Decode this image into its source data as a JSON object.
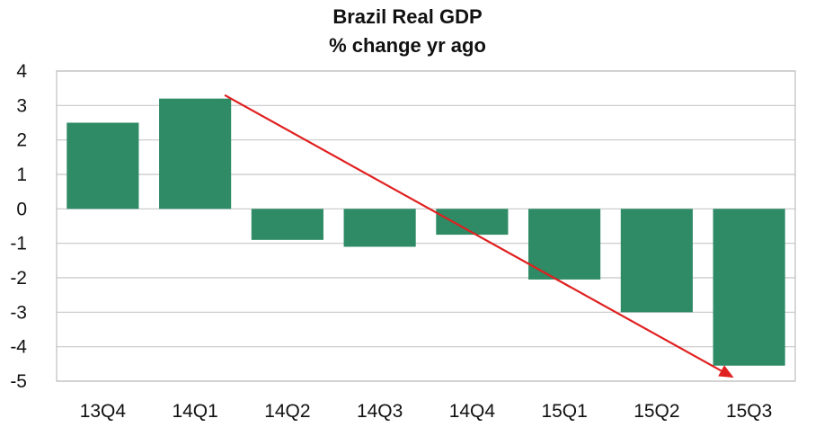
{
  "chart_data": {
    "type": "bar",
    "title": "Brazil Real GDP",
    "subtitle": "% change yr ago",
    "categories": [
      "13Q4",
      "14Q1",
      "14Q2",
      "14Q3",
      "14Q4",
      "15Q1",
      "15Q2",
      "15Q3"
    ],
    "values": [
      2.5,
      3.2,
      -0.9,
      -1.1,
      -0.75,
      -2.05,
      -3.0,
      -4.55
    ],
    "ylim": [
      -5,
      4
    ],
    "yticks": [
      4,
      3,
      2,
      1,
      0,
      -1,
      -2,
      -3,
      -4,
      -5
    ],
    "grid": true,
    "legend": "none",
    "bar_color": "#2e8b66",
    "annotation": {
      "type": "arrow",
      "color": "#e02020",
      "from": {
        "x": "14Q1",
        "y": 3.3
      },
      "to": {
        "x": "15Q3",
        "y": -4.9
      }
    }
  }
}
